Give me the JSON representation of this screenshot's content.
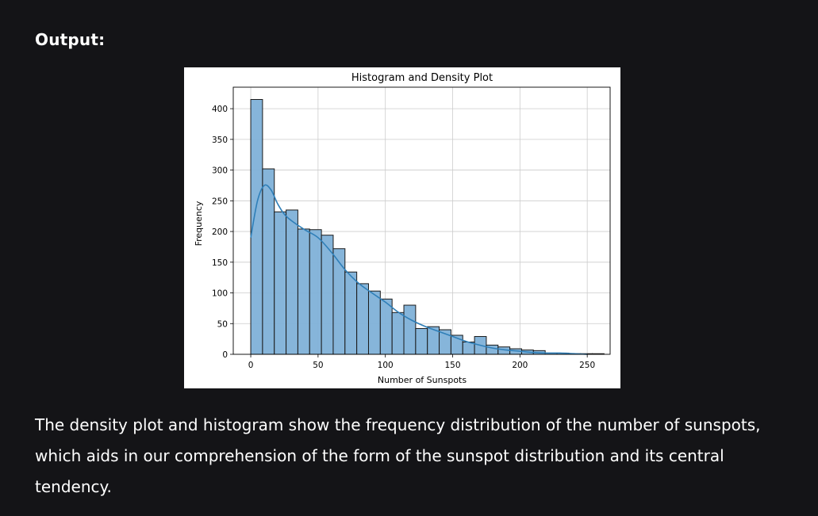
{
  "heading": "Output:",
  "caption": "The density plot and histogram show the frequency distribution of the number of sunspots, which aids in our comprehension of the form of the sunspot distribution and its central tendency.",
  "chart_data": {
    "type": "bar",
    "title": "Histogram and Density Plot",
    "xlabel": "Number of Sunspots",
    "ylabel": "Frequency",
    "xlim": [
      -13,
      267
    ],
    "ylim": [
      0,
      435
    ],
    "xticks": [
      0,
      50,
      100,
      150,
      200,
      250
    ],
    "yticks": [
      0,
      50,
      100,
      150,
      200,
      250,
      300,
      350,
      400
    ],
    "grid": true,
    "bin_width": 8.75,
    "bins_start": 0,
    "values": [
      415,
      302,
      232,
      235,
      204,
      203,
      194,
      172,
      134,
      115,
      103,
      90,
      68,
      80,
      42,
      45,
      40,
      31,
      20,
      29,
      15,
      12,
      9,
      7,
      6,
      2,
      2,
      1,
      1,
      1
    ],
    "density_curve": {
      "x": [
        0,
        5,
        10,
        15,
        20,
        25,
        30,
        40,
        50,
        60,
        70,
        80,
        90,
        100,
        110,
        120,
        130,
        140,
        150,
        160,
        170,
        180,
        190,
        200,
        210,
        220,
        230,
        240,
        250
      ],
      "y": [
        190,
        250,
        275,
        268,
        245,
        228,
        218,
        203,
        190,
        166,
        138,
        116,
        100,
        85,
        68,
        55,
        45,
        37,
        29,
        21,
        15,
        10,
        7,
        5,
        3,
        2,
        2,
        1,
        0
      ]
    },
    "colors": {
      "bar_fill": "#7fb1d8",
      "bar_edge": "#1a1a1a",
      "curve": "#2f7fb8",
      "grid": "#cccccc"
    }
  }
}
